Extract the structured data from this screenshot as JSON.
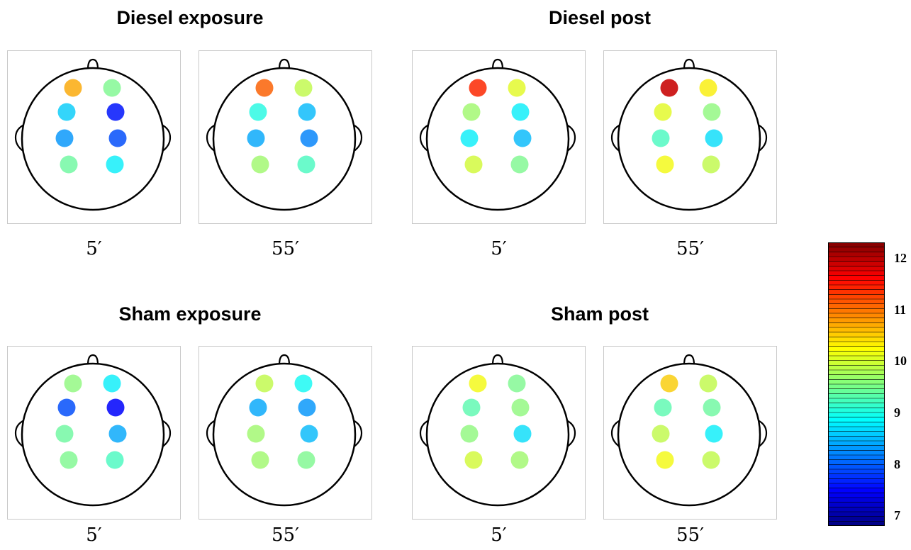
{
  "groups": [
    {
      "title": "Diesel exposure",
      "panels": [
        {
          "time": "5′",
          "electrodes": [
            {
              "pos": "F3",
              "value": 10.7
            },
            {
              "pos": "F4",
              "value": 9.5
            },
            {
              "pos": "C3",
              "value": 8.6
            },
            {
              "pos": "C4",
              "value": 7.6
            },
            {
              "pos": "P3",
              "value": 8.3
            },
            {
              "pos": "P4",
              "value": 7.9
            },
            {
              "pos": "O1",
              "value": 9.4
            },
            {
              "pos": "O2",
              "value": 8.8
            }
          ]
        },
        {
          "time": "55′",
          "electrodes": [
            {
              "pos": "F3",
              "value": 11.1
            },
            {
              "pos": "F4",
              "value": 9.9
            },
            {
              "pos": "C3",
              "value": 9.0
            },
            {
              "pos": "C4",
              "value": 8.5
            },
            {
              "pos": "P3",
              "value": 8.4
            },
            {
              "pos": "P4",
              "value": 8.2
            },
            {
              "pos": "O1",
              "value": 9.7
            },
            {
              "pos": "O2",
              "value": 9.2
            }
          ]
        }
      ]
    },
    {
      "title": "Diesel post",
      "panels": [
        {
          "time": "5′",
          "electrodes": [
            {
              "pos": "F3",
              "value": 11.4
            },
            {
              "pos": "F4",
              "value": 10.1
            },
            {
              "pos": "C3",
              "value": 9.7
            },
            {
              "pos": "C4",
              "value": 8.8
            },
            {
              "pos": "P3",
              "value": 8.8
            },
            {
              "pos": "P4",
              "value": 8.5
            },
            {
              "pos": "O1",
              "value": 10.0
            },
            {
              "pos": "O2",
              "value": 9.5
            }
          ]
        },
        {
          "time": "55′",
          "electrodes": [
            {
              "pos": "F3",
              "value": 11.9
            },
            {
              "pos": "F4",
              "value": 10.3
            },
            {
              "pos": "C3",
              "value": 10.1
            },
            {
              "pos": "C4",
              "value": 9.6
            },
            {
              "pos": "P3",
              "value": 9.2
            },
            {
              "pos": "P4",
              "value": 8.7
            },
            {
              "pos": "O1",
              "value": 10.2
            },
            {
              "pos": "O2",
              "value": 9.9
            }
          ]
        }
      ]
    },
    {
      "title": "Sham exposure",
      "panels": [
        {
          "time": "5′",
          "electrodes": [
            {
              "pos": "F3",
              "value": 9.6
            },
            {
              "pos": "F4",
              "value": 8.8
            },
            {
              "pos": "C3",
              "value": 7.9
            },
            {
              "pos": "C4",
              "value": 7.5
            },
            {
              "pos": "P3",
              "value": 9.4
            },
            {
              "pos": "P4",
              "value": 8.4
            },
            {
              "pos": "O1",
              "value": 9.5
            },
            {
              "pos": "O2",
              "value": 9.2
            }
          ]
        },
        {
          "time": "55′",
          "electrodes": [
            {
              "pos": "F3",
              "value": 9.9
            },
            {
              "pos": "F4",
              "value": 8.9
            },
            {
              "pos": "C3",
              "value": 8.4
            },
            {
              "pos": "C4",
              "value": 8.3
            },
            {
              "pos": "P3",
              "value": 9.7
            },
            {
              "pos": "P4",
              "value": 8.5
            },
            {
              "pos": "O1",
              "value": 9.7
            },
            {
              "pos": "O2",
              "value": 9.5
            }
          ]
        }
      ]
    },
    {
      "title": "Sham post",
      "panels": [
        {
          "time": "5′",
          "electrodes": [
            {
              "pos": "F3",
              "value": 10.2
            },
            {
              "pos": "F4",
              "value": 9.5
            },
            {
              "pos": "C3",
              "value": 9.3
            },
            {
              "pos": "C4",
              "value": 9.6
            },
            {
              "pos": "P3",
              "value": 9.6
            },
            {
              "pos": "P4",
              "value": 8.7
            },
            {
              "pos": "O1",
              "value": 10.0
            },
            {
              "pos": "O2",
              "value": 9.7
            }
          ]
        },
        {
          "time": "55′",
          "electrodes": [
            {
              "pos": "F3",
              "value": 10.5
            },
            {
              "pos": "F4",
              "value": 9.9
            },
            {
              "pos": "C3",
              "value": 9.3
            },
            {
              "pos": "C4",
              "value": 9.4
            },
            {
              "pos": "P3",
              "value": 9.9
            },
            {
              "pos": "P4",
              "value": 8.8
            },
            {
              "pos": "O1",
              "value": 10.2
            },
            {
              "pos": "O2",
              "value": 9.9
            }
          ]
        }
      ]
    }
  ],
  "colorbar": {
    "min": 6.8,
    "max": 12.3,
    "ticks": [
      "12",
      "11",
      "10",
      "9",
      "8",
      "7"
    ],
    "tick_values": [
      12,
      11,
      10,
      9,
      8,
      7
    ],
    "colormap": "jet"
  }
}
